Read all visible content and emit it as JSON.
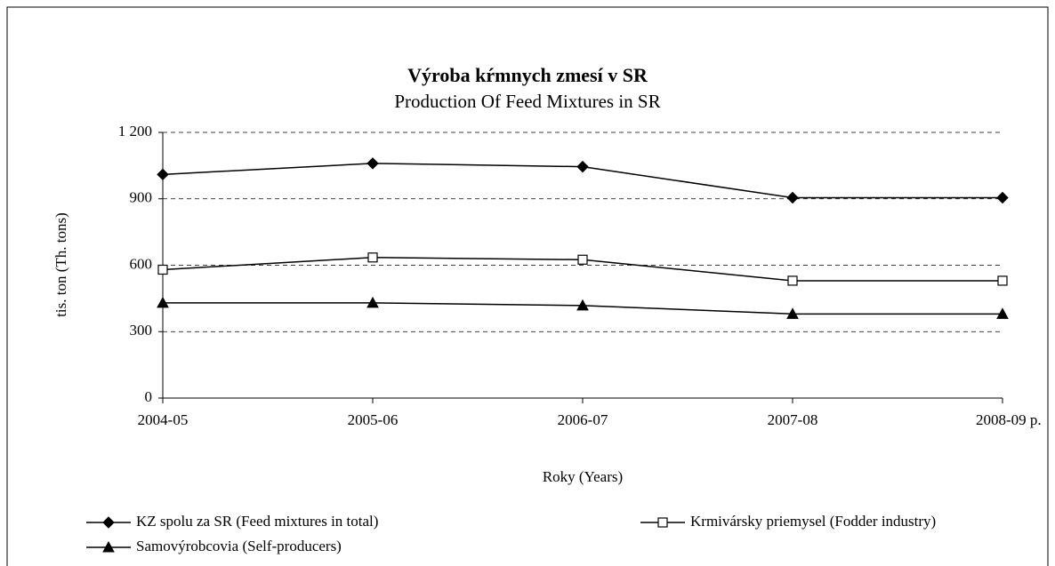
{
  "chart_data": {
    "type": "line",
    "title": "Výroba kŕmnych zmesí v SR",
    "subtitle": "Production Of Feed Mixtures in SR",
    "y_label": "tis. ton (Th. tons)",
    "x_label": "Roky (Years)",
    "categories": [
      "2004-05",
      "2005-06",
      "2006-07",
      "2007-08",
      "2008-09 p."
    ],
    "series": [
      {
        "name": "KZ spolu za SR (Feed mixtures in total)",
        "color": "#000000",
        "marker": "diamond",
        "values": [
          1010,
          1060,
          1045,
          905,
          905
        ]
      },
      {
        "name": "Krmivársky priemysel (Fodder industry)",
        "color": "#000000",
        "marker": "square",
        "values": [
          580,
          635,
          625,
          530,
          530
        ]
      },
      {
        "name": "Samovýrobcovia (Self-producers)",
        "color": "#000000",
        "marker": "triangle",
        "values": [
          430,
          430,
          418,
          380,
          380
        ]
      }
    ],
    "ylim": [
      0,
      1200
    ],
    "yticks": [
      0,
      300,
      600,
      900,
      {
        "value": 1200,
        "label": "1 200"
      }
    ],
    "grid": true
  }
}
